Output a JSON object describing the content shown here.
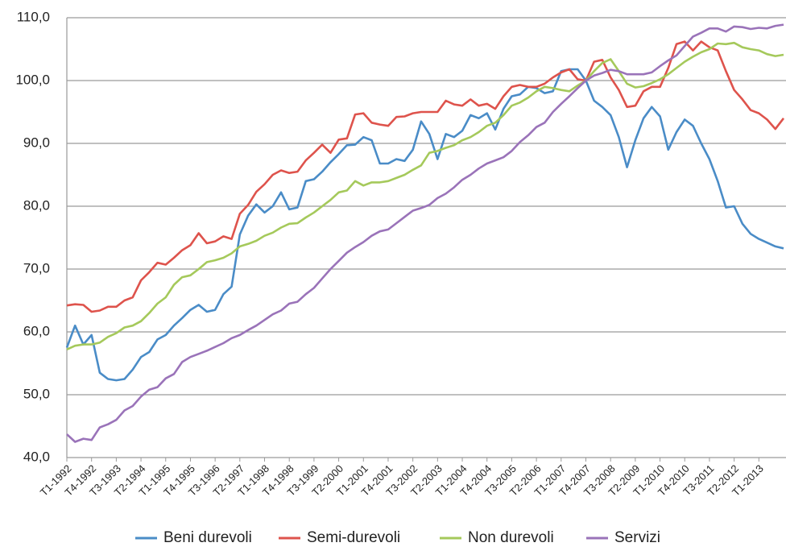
{
  "chart_data": {
    "type": "line",
    "categories": [
      "T1-1992",
      null,
      null,
      "T4-1992",
      null,
      null,
      "T3-1993",
      null,
      null,
      "T2-1994",
      null,
      null,
      "T1-1995",
      null,
      null,
      "T4-1995",
      null,
      null,
      "T3-1996",
      null,
      null,
      "T2-1997",
      null,
      null,
      "T1-1998",
      null,
      null,
      "T4-1998",
      null,
      null,
      "T3-1999",
      null,
      null,
      "T2-2000",
      null,
      null,
      "T1-2001",
      null,
      null,
      "T4-2001",
      null,
      null,
      "T3-2002",
      null,
      null,
      "T2-2003",
      null,
      null,
      "T1-2004",
      null,
      null,
      "T4-2004",
      null,
      null,
      "T3-2005",
      null,
      null,
      "T2-2006",
      null,
      null,
      "T1-2007",
      null,
      null,
      "T4-2007",
      null,
      null,
      "T3-2008",
      null,
      null,
      "T2-2009",
      null,
      null,
      "T1-2010",
      null,
      null,
      "T4-2010",
      null,
      null,
      "T3-2011",
      null,
      null,
      "T2-2012",
      null,
      null,
      "T1-2013",
      null,
      null,
      null
    ],
    "series": [
      {
        "name": "Beni durevoli",
        "color": "#4a8cc7",
        "values": [
          57.5,
          61,
          58,
          59.5,
          53.5,
          52.5,
          52.3,
          52.5,
          54,
          56,
          56.8,
          58.8,
          59.5,
          61,
          62.2,
          63.5,
          64.3,
          63.2,
          63.5,
          66,
          67.2,
          75.5,
          78.5,
          80.3,
          79,
          80,
          82.2,
          79.5,
          79.8,
          84,
          84.3,
          85.5,
          87,
          88.3,
          89.7,
          89.8,
          91,
          90.5,
          86.8,
          86.8,
          87.5,
          87.2,
          89,
          93.5,
          91.5,
          87.5,
          91.5,
          91,
          92,
          94.5,
          94,
          94.8,
          92.2,
          95.5,
          97.5,
          97.8,
          99,
          98.8,
          98,
          98.3,
          101.5,
          101.8,
          101.8,
          100,
          96.8,
          95.8,
          94.5,
          91,
          86.2,
          90.5,
          94,
          95.8,
          94.3,
          89,
          91.8,
          93.8,
          92.8,
          90,
          87.5,
          84,
          79.8,
          80,
          77.2,
          75.6,
          74.8,
          74.2,
          73.6,
          73.3
        ]
      },
      {
        "name": "Semi-durevoli",
        "color": "#de534c",
        "values": [
          64.2,
          64.4,
          64.3,
          63.2,
          63.4,
          64,
          64,
          65,
          65.5,
          68.2,
          69.5,
          71,
          70.7,
          71.8,
          73,
          73.8,
          75.7,
          74.1,
          74.4,
          75.2,
          74.8,
          78.8,
          80.2,
          82.3,
          83.5,
          85,
          85.7,
          85.3,
          85.5,
          87.3,
          88.5,
          89.8,
          88.5,
          90.6,
          90.8,
          94.6,
          94.8,
          93.3,
          93,
          92.8,
          94.2,
          94.3,
          94.8,
          95,
          95,
          95,
          96.8,
          96.2,
          96,
          97,
          96,
          96.3,
          95.5,
          97.5,
          99,
          99.3,
          99,
          99,
          99.5,
          100.5,
          101.3,
          101.8,
          100.2,
          100,
          103,
          103.3,
          100.5,
          98.5,
          95.8,
          96,
          98.3,
          99,
          99,
          102,
          105.8,
          106.2,
          104.8,
          106.2,
          105.3,
          104.8,
          101.5,
          98.5,
          97,
          95.3,
          94.8,
          93.8,
          92.3,
          94
        ]
      },
      {
        "name": "Non durevoli",
        "color": "#a5c95b",
        "values": [
          57.2,
          57.8,
          58,
          58,
          58.3,
          59.2,
          59.8,
          60.7,
          61,
          61.7,
          63,
          64.5,
          65.5,
          67.5,
          68.7,
          69,
          70,
          71.1,
          71.4,
          71.8,
          72.5,
          73.6,
          74,
          74.5,
          75.3,
          75.8,
          76.6,
          77.2,
          77.3,
          78.2,
          79,
          80,
          81,
          82.2,
          82.5,
          84,
          83.3,
          83.8,
          83.8,
          84,
          84.5,
          85,
          85.8,
          86.5,
          88.5,
          88.8,
          89.3,
          89.7,
          90.5,
          91,
          91.8,
          92.8,
          93.3,
          94.5,
          96,
          96.5,
          97.3,
          98.3,
          99,
          98.8,
          98.5,
          98.3,
          99.2,
          100,
          101.5,
          102.8,
          103.4,
          101.5,
          99.5,
          98.9,
          99.1,
          99.6,
          100.2,
          101,
          102,
          103,
          103.8,
          104.5,
          105,
          105.9,
          105.8,
          106,
          105.3,
          105,
          104.8,
          104.2,
          103.9,
          104.1
        ]
      },
      {
        "name": "Servizi",
        "color": "#9a73b9",
        "values": [
          43.7,
          42.5,
          43,
          42.8,
          44.8,
          45.3,
          46,
          47.5,
          48.2,
          49.7,
          50.8,
          51.2,
          52.6,
          53.3,
          55.2,
          56,
          56.5,
          57,
          57.6,
          58.2,
          59,
          59.5,
          60.3,
          61,
          61.9,
          62.8,
          63.4,
          64.5,
          64.8,
          66,
          67,
          68.5,
          70,
          71.3,
          72.6,
          73.5,
          74.3,
          75.3,
          76,
          76.3,
          77.3,
          78.3,
          79.3,
          79.7,
          80.2,
          81.3,
          82,
          83,
          84.2,
          85,
          86,
          86.8,
          87.3,
          87.8,
          88.8,
          90.2,
          91.3,
          92.6,
          93.3,
          95,
          96.3,
          97.5,
          98.8,
          100,
          100.8,
          101.2,
          101.7,
          101.5,
          101,
          101,
          101,
          101.3,
          102.3,
          103.2,
          104,
          105.5,
          107,
          107.6,
          108.3,
          108.3,
          107.8,
          108.6,
          108.5,
          108.2,
          108.4,
          108.3,
          108.7,
          108.9
        ]
      }
    ],
    "ylim": [
      40,
      110
    ],
    "yticks": [
      {
        "value": 40,
        "label": "40,0"
      },
      {
        "value": 50,
        "label": "50,0"
      },
      {
        "value": 60,
        "label": "60,0"
      },
      {
        "value": 70,
        "label": "70,0"
      },
      {
        "value": 80,
        "label": "80,0"
      },
      {
        "value": 90,
        "label": "90,0"
      },
      {
        "value": 100,
        "label": "100,0"
      },
      {
        "value": 110,
        "label": "110,0"
      }
    ],
    "grid": true,
    "legend": "bottom"
  }
}
